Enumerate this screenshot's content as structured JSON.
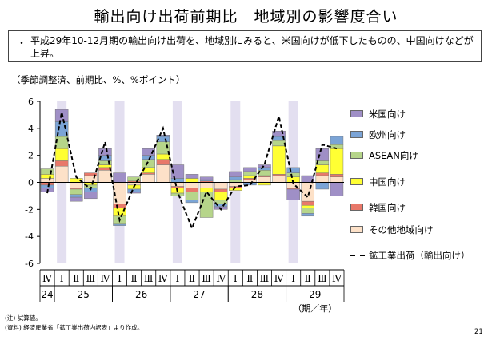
{
  "title": "輸出向け出荷前期比　地域別の影響度合い",
  "summary": {
    "bullet": "・",
    "text": "平成29年10-12月期の輸出向け出荷を、地域別にみると、米国向けが低下したものの、中国向けなどが上昇。"
  },
  "units": "（季節調整済、前期比、%、%ポイント）",
  "legend": {
    "us": "米国向け",
    "eu": "欧州向け",
    "asean": "ASEAN向け",
    "china": "中国向け",
    "korea": "韓国向け",
    "other": "その他地域向け",
    "total": "鉱工業出荷（輸出向け）"
  },
  "notes": {
    "note1": "(注) 試算値。",
    "note2": "(資料) 経済産業省「鉱工業出荷内訳表」より作成。"
  },
  "page_number": "21",
  "chart_data": {
    "type": "bar",
    "stacked": true,
    "ylim": [
      -6,
      6
    ],
    "yticks": [
      "6",
      "4",
      "2",
      "0",
      "-2",
      "-4",
      "-6"
    ],
    "quarters": [
      "Ⅳ",
      "Ⅰ",
      "Ⅱ",
      "Ⅲ",
      "Ⅳ",
      "Ⅰ",
      "Ⅱ",
      "Ⅲ",
      "Ⅳ",
      "Ⅰ",
      "Ⅱ",
      "Ⅲ",
      "Ⅳ",
      "Ⅰ",
      "Ⅱ",
      "Ⅲ",
      "Ⅳ",
      "Ⅰ",
      "Ⅱ",
      "Ⅲ",
      "Ⅳ"
    ],
    "years": [
      {
        "label": "24",
        "start": 0,
        "end": 0
      },
      {
        "label": "25",
        "start": 1,
        "end": 4
      },
      {
        "label": "26",
        "start": 5,
        "end": 8
      },
      {
        "label": "27",
        "start": 9,
        "end": 12
      },
      {
        "label": "28",
        "start": 13,
        "end": 16
      },
      {
        "label": "29",
        "start": 17,
        "end": 20
      }
    ],
    "period_unit": "（期／年）",
    "shaded_quarter": "Ⅰ",
    "colors": {
      "us": "#9f8fc6",
      "eu": "#7ba4d6",
      "asean": "#b6d58a",
      "china": "#ffff33",
      "korea": "#e8786a",
      "other": "#fde1c8",
      "shade": "#e3dff0"
    },
    "series": [
      {
        "key": "other",
        "name": "その他地域向け",
        "values": [
          0.3,
          1.2,
          -0.4,
          0.5,
          0.9,
          -1.6,
          -0.2,
          0.6,
          1.3,
          -0.3,
          -0.4,
          -0.4,
          -0.5,
          -0.3,
          0.2,
          0.4,
          0.5,
          -0.4,
          -1.4,
          0.5,
          0.4
        ]
      },
      {
        "key": "korea",
        "name": "韓国向け",
        "values": [
          -0.2,
          0.4,
          -0.1,
          0.2,
          0.2,
          -0.3,
          0.1,
          0.1,
          0.4,
          -0.1,
          -0.3,
          0.1,
          -0.2,
          -0.1,
          0.1,
          0.1,
          0.1,
          -0.1,
          -0.3,
          0.2,
          0.2
        ]
      },
      {
        "key": "china",
        "name": "中国向け",
        "values": [
          0.3,
          0.9,
          0.3,
          -0.2,
          0.2,
          -0.6,
          -0.3,
          0.4,
          0.4,
          -0.4,
          0.3,
          -0.3,
          -0.6,
          -0.2,
          0.2,
          -0.2,
          2.1,
          0.4,
          -0.2,
          0.6,
          1.9
        ]
      },
      {
        "key": "asean",
        "name": "ASEAN向け",
        "values": [
          0.4,
          0.9,
          -0.4,
          -0.2,
          0.3,
          -0.6,
          0.3,
          0.6,
          0.9,
          -0.2,
          -0.6,
          -1.9,
          -0.3,
          0.2,
          0.3,
          0.4,
          0.4,
          0.3,
          -0.4,
          0.3,
          0.3
        ]
      },
      {
        "key": "eu",
        "name": "欧州向け",
        "values": [
          -0.2,
          1.1,
          -0.2,
          -0.3,
          0.4,
          -0.1,
          -0.2,
          0.3,
          0.4,
          0.3,
          -0.2,
          0.1,
          -0.2,
          0.2,
          -0.2,
          0.2,
          0.3,
          0.4,
          -0.2,
          -0.5,
          0.6
        ]
      },
      {
        "key": "us",
        "name": "米国向け",
        "values": [
          -0.3,
          0.9,
          -0.3,
          -0.5,
          0.5,
          0.7,
          -0.1,
          0.5,
          0.1,
          1.0,
          0.3,
          0.2,
          -0.2,
          0.4,
          0.3,
          0.2,
          0.4,
          -0.8,
          0.5,
          0.9,
          -1.0
        ]
      }
    ],
    "total": {
      "key": "total",
      "name": "鉱工業出荷（輸出向け）",
      "values": [
        -0.8,
        5.2,
        0.4,
        -0.5,
        3.0,
        -2.8,
        -0.3,
        1.6,
        4.0,
        -0.7,
        -3.4,
        -0.7,
        -2.0,
        -0.3,
        -0.2,
        1.3,
        4.9,
        -0.1,
        -1.1,
        2.8,
        2.5
      ]
    }
  }
}
